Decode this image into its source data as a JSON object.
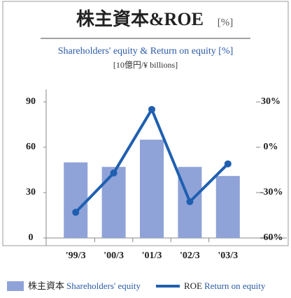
{
  "chart_data": {
    "type": "bar-line",
    "title": "株主資本&ROE",
    "title_unit": "[%]",
    "subtitle": "Shareholders' equity & Return on equity [%]",
    "unit_label": "[10億円/¥ billions]",
    "categories": [
      "'99/3",
      "'00/3",
      "'01/3",
      "'02/3",
      "'03/3"
    ],
    "series": [
      {
        "name": "株主資本",
        "name_en": "Shareholders' equity",
        "color": "#8fa3d8",
        "type": "bar",
        "values": [
          50,
          47,
          65,
          47,
          41
        ]
      },
      {
        "name": "ROE",
        "name_en": "Return on equity",
        "color": "#1f5fb0",
        "type": "line",
        "axis": "y2",
        "values": [
          -43,
          -17,
          25,
          -36,
          -11
        ]
      }
    ],
    "ylim": [
      0,
      90
    ],
    "yticks": [
      0,
      30,
      60,
      90
    ],
    "y2lim": [
      -60,
      30
    ],
    "y2ticks": [
      {
        "value": -60,
        "label": "–60%"
      },
      {
        "value": -30,
        "label": "–30%"
      },
      {
        "value": 0,
        "label": "0%"
      },
      {
        "value": 30,
        "label": "30%"
      }
    ],
    "legend": "bottom"
  }
}
